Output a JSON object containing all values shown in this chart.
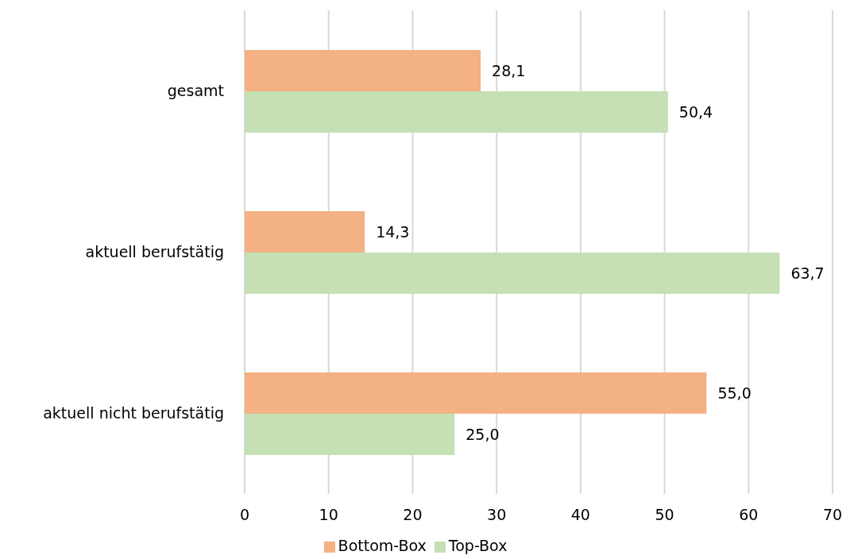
{
  "chart_data": {
    "type": "bar",
    "orientation": "horizontal",
    "categories": [
      "gesamt",
      "aktuell berufstätig",
      "aktuell nicht berufstätig"
    ],
    "series": [
      {
        "name": "Bottom-Box",
        "color": "#f4b183",
        "values": [
          28.1,
          14.3,
          55.0
        ],
        "value_labels": [
          "28,1",
          "14,3",
          "55,0"
        ]
      },
      {
        "name": "Top-Box",
        "color": "#c5e0b4",
        "values": [
          50.4,
          63.7,
          25.0
        ],
        "value_labels": [
          "50,4",
          "63,7",
          "25,0"
        ]
      }
    ],
    "xlim": [
      0,
      70
    ],
    "xticks": [
      0,
      10,
      20,
      30,
      40,
      50,
      60,
      70
    ],
    "grid": "x",
    "legend": "bottom"
  }
}
